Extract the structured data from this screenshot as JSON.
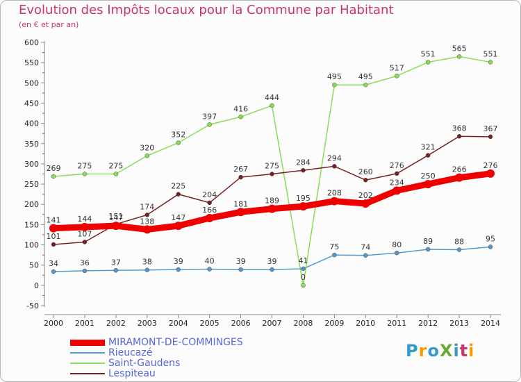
{
  "header": {
    "title": "Evolution des Impôts locaux pour la Commune par Habitant",
    "subtitle": "(en € et par an)"
  },
  "logo": {
    "text": "ProXiti",
    "colors": [
      "#3399cc",
      "#ff9900",
      "#3399cc",
      "#66aa33",
      "#3399cc",
      "#cc3366",
      "#ff9900"
    ]
  },
  "colors": {
    "title": "#cc3366",
    "legend_text": "#5566dd",
    "axis": "#888888",
    "grid_tick": "#cc3366"
  },
  "chart_data": {
    "type": "line",
    "title": "Evolution des Impôts locaux pour la Commune par Habitant",
    "subtitle": "(en € et par an)",
    "x": [
      2000,
      2001,
      2002,
      2003,
      2004,
      2005,
      2006,
      2007,
      2008,
      2009,
      2010,
      2011,
      2012,
      2013,
      2014
    ],
    "ylim": [
      -50,
      600
    ],
    "yticks": [
      -50,
      0,
      50,
      100,
      150,
      200,
      250,
      300,
      350,
      400,
      450,
      500,
      550,
      600
    ],
    "grid": false,
    "legend_position": "bottom-left",
    "series": [
      {
        "name": "MIRAMONT-DE-COMMINGES",
        "color": "#ee0000",
        "width": 9,
        "values": [
          141,
          144,
          147,
          138,
          147,
          166,
          181,
          189,
          195,
          208,
          202,
          234,
          250,
          266,
          276
        ]
      },
      {
        "name": "Rieucazé",
        "color": "#5599cc",
        "width": 1.5,
        "values": [
          34,
          36,
          37,
          38,
          39,
          40,
          39,
          39,
          41,
          75,
          74,
          80,
          89,
          88,
          95
        ]
      },
      {
        "name": "Saint-Gaudens",
        "color": "#88dd55",
        "width": 1.5,
        "values": [
          269,
          275,
          275,
          320,
          352,
          397,
          416,
          444,
          0,
          495,
          495,
          517,
          551,
          565,
          551
        ]
      },
      {
        "name": "Lespiteau",
        "color": "#772222",
        "width": 1.5,
        "values": [
          101,
          107,
          151,
          174,
          225,
          204,
          267,
          275,
          284,
          294,
          260,
          276,
          321,
          368,
          367
        ]
      }
    ]
  }
}
